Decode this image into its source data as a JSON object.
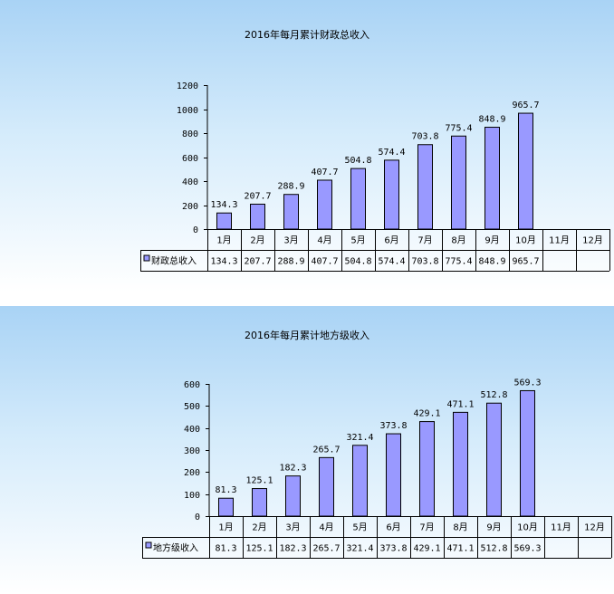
{
  "colors": {
    "bar_fill": "#9999ff",
    "bar_stroke": "#000000",
    "background_top": "#a9d3f5"
  },
  "chart_data": [
    {
      "type": "bar",
      "title": "2016年每月累计财政总收入",
      "categories": [
        "1月",
        "2月",
        "3月",
        "4月",
        "5月",
        "6月",
        "7月",
        "8月",
        "9月",
        "10月",
        "11月",
        "12月"
      ],
      "series": [
        {
          "name": "财政总收入",
          "values": [
            134.3,
            207.7,
            288.9,
            407.7,
            504.8,
            574.4,
            703.8,
            775.4,
            848.9,
            965.7,
            null,
            null
          ]
        }
      ],
      "ylim": [
        0,
        1200
      ],
      "yticks": [
        0,
        200,
        400,
        600,
        800,
        1000,
        1200
      ],
      "grid": false,
      "legend": "data-table"
    },
    {
      "type": "bar",
      "title": "2016年每月累计地方级收入",
      "categories": [
        "1月",
        "2月",
        "3月",
        "4月",
        "5月",
        "6月",
        "7月",
        "8月",
        "9月",
        "10月",
        "11月",
        "12月"
      ],
      "series": [
        {
          "name": "地方级收入",
          "values": [
            81.3,
            125.1,
            182.3,
            265.7,
            321.4,
            373.8,
            429.1,
            471.1,
            512.8,
            569.3,
            null,
            null
          ]
        }
      ],
      "ylim": [
        0,
        600
      ],
      "yticks": [
        0,
        100,
        200,
        300,
        400,
        500,
        600
      ],
      "grid": false,
      "legend": "data-table"
    }
  ]
}
